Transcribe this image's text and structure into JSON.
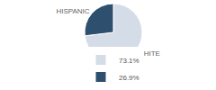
{
  "chart_data": {
    "type": "pie",
    "categories": [
      "WHITE",
      "HISPANIC"
    ],
    "values": [
      73.1,
      26.9
    ],
    "value_labels": [
      "73.1%",
      "26.9%"
    ],
    "colors": [
      "#d4dce8",
      "#2e4f6e"
    ],
    "legend": "bottom"
  }
}
